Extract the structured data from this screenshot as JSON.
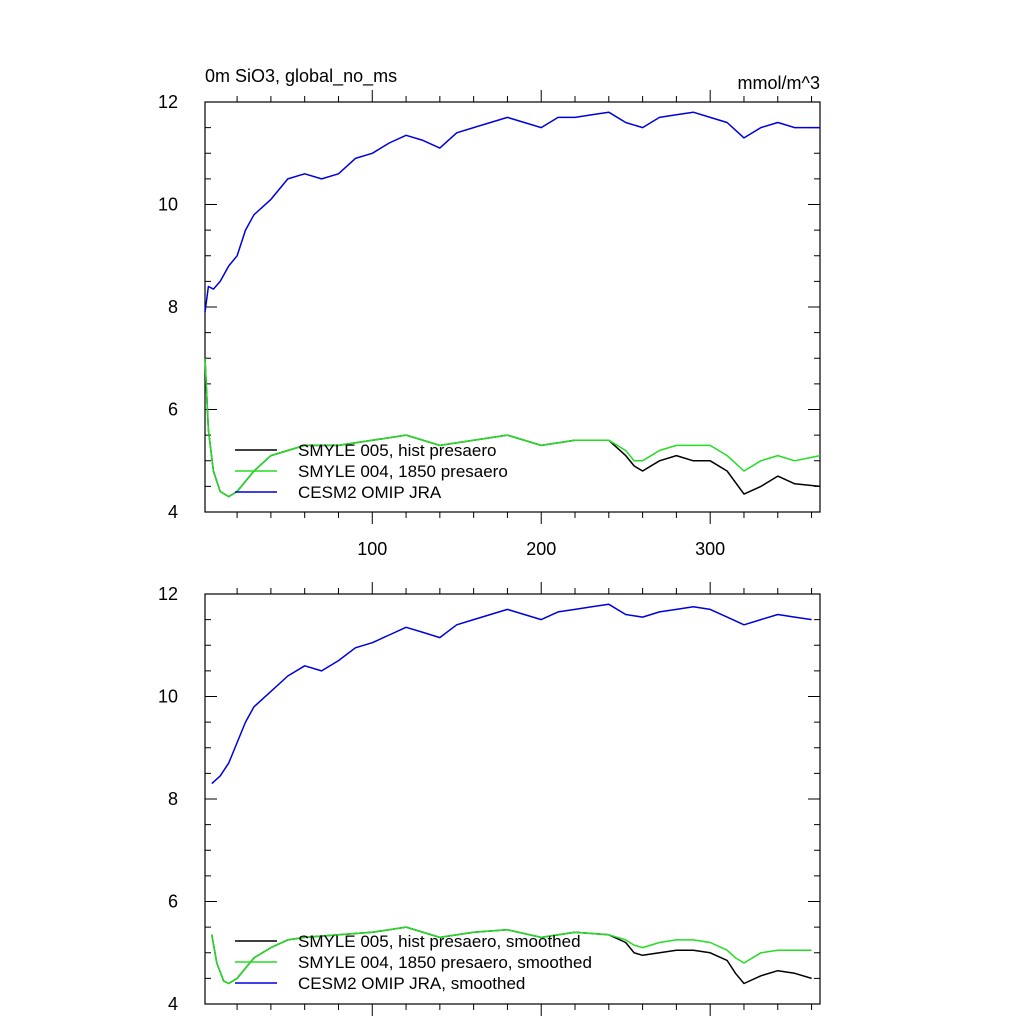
{
  "chart_data": [
    {
      "type": "line",
      "title": "0m SiO3, global_no_ms",
      "units": "mmol/m^3",
      "xlabel": "",
      "ylabel": "",
      "xlim": [
        1,
        365
      ],
      "ylim": [
        4,
        12
      ],
      "xticks": [
        100,
        200,
        300
      ],
      "xtick_labels": [
        "100",
        "200",
        "300"
      ],
      "yticks": [
        4,
        6,
        8,
        10,
        12
      ],
      "ytick_labels": [
        "4",
        "6",
        "8",
        "10",
        "12"
      ],
      "grid": false,
      "legend_position": "bottom-left",
      "series": [
        {
          "name": "SMYLE 005, hist presaero",
          "color": "#000000",
          "x": [
            1,
            3,
            6,
            10,
            15,
            20,
            30,
            40,
            50,
            60,
            80,
            100,
            120,
            140,
            160,
            180,
            200,
            220,
            240,
            250,
            255,
            260,
            270,
            280,
            290,
            300,
            310,
            320,
            330,
            340,
            350,
            365
          ],
          "y": [
            7.0,
            5.6,
            4.8,
            4.4,
            4.3,
            4.4,
            4.8,
            5.1,
            5.2,
            5.3,
            5.3,
            5.4,
            5.5,
            5.3,
            5.4,
            5.5,
            5.3,
            5.4,
            5.4,
            5.1,
            4.9,
            4.8,
            5.0,
            5.1,
            5.0,
            5.0,
            4.8,
            4.35,
            4.5,
            4.7,
            4.55,
            4.5
          ]
        },
        {
          "name": "SMYLE 004, 1850 presaero",
          "color": "#22dd22",
          "x": [
            1,
            3,
            6,
            10,
            15,
            20,
            30,
            40,
            50,
            60,
            80,
            100,
            120,
            140,
            160,
            180,
            200,
            220,
            240,
            250,
            255,
            260,
            270,
            280,
            290,
            300,
            310,
            320,
            330,
            340,
            350,
            365
          ],
          "y": [
            7.0,
            5.6,
            4.8,
            4.4,
            4.3,
            4.4,
            4.8,
            5.1,
            5.2,
            5.3,
            5.3,
            5.4,
            5.5,
            5.3,
            5.4,
            5.5,
            5.3,
            5.4,
            5.4,
            5.2,
            5.0,
            5.0,
            5.2,
            5.3,
            5.3,
            5.3,
            5.1,
            4.8,
            5.0,
            5.1,
            5.0,
            5.1
          ]
        },
        {
          "name": "CESM2 OMIP JRA",
          "color": "#0000dd",
          "x": [
            1,
            3,
            6,
            10,
            15,
            20,
            25,
            30,
            40,
            50,
            60,
            70,
            80,
            90,
            100,
            110,
            120,
            130,
            140,
            150,
            160,
            170,
            180,
            190,
            200,
            210,
            220,
            230,
            240,
            250,
            260,
            270,
            280,
            290,
            300,
            310,
            320,
            330,
            340,
            350,
            365
          ],
          "y": [
            7.9,
            8.4,
            8.35,
            8.5,
            8.8,
            9.0,
            9.5,
            9.8,
            10.1,
            10.5,
            10.6,
            10.5,
            10.6,
            10.9,
            11.0,
            11.2,
            11.35,
            11.25,
            11.1,
            11.4,
            11.5,
            11.6,
            11.7,
            11.6,
            11.5,
            11.7,
            11.7,
            11.75,
            11.8,
            11.6,
            11.5,
            11.7,
            11.75,
            11.8,
            11.7,
            11.6,
            11.3,
            11.5,
            11.6,
            11.5,
            11.5
          ]
        }
      ]
    },
    {
      "type": "line",
      "title": "",
      "units": "",
      "xlabel": "",
      "ylabel": "",
      "xlim": [
        1,
        365
      ],
      "ylim": [
        4,
        12
      ],
      "xticks": [
        100,
        200,
        300
      ],
      "xtick_labels": [],
      "yticks": [
        4,
        6,
        8,
        10,
        12
      ],
      "ytick_labels": [
        "4",
        "6",
        "8",
        "10",
        "12"
      ],
      "grid": false,
      "legend_position": "bottom-left",
      "series": [
        {
          "name": "SMYLE 005, hist presaero, smoothed",
          "color": "#000000",
          "x": [
            5,
            8,
            12,
            15,
            20,
            30,
            40,
            50,
            60,
            80,
            100,
            120,
            140,
            160,
            180,
            200,
            220,
            240,
            250,
            255,
            260,
            270,
            280,
            290,
            300,
            310,
            315,
            320,
            330,
            340,
            350,
            360
          ],
          "y": [
            5.35,
            4.8,
            4.45,
            4.4,
            4.5,
            4.9,
            5.1,
            5.25,
            5.3,
            5.35,
            5.4,
            5.5,
            5.3,
            5.4,
            5.45,
            5.3,
            5.4,
            5.35,
            5.2,
            5.0,
            4.95,
            5.0,
            5.05,
            5.05,
            5.0,
            4.85,
            4.6,
            4.4,
            4.55,
            4.65,
            4.6,
            4.5
          ]
        },
        {
          "name": "SMYLE 004, 1850 presaero, smoothed",
          "color": "#22dd22",
          "x": [
            5,
            8,
            12,
            15,
            20,
            30,
            40,
            50,
            60,
            80,
            100,
            120,
            140,
            160,
            180,
            200,
            220,
            240,
            250,
            255,
            260,
            270,
            280,
            290,
            300,
            310,
            315,
            320,
            330,
            340,
            350,
            360
          ],
          "y": [
            5.35,
            4.8,
            4.45,
            4.4,
            4.5,
            4.9,
            5.1,
            5.25,
            5.3,
            5.35,
            5.4,
            5.5,
            5.3,
            5.4,
            5.45,
            5.3,
            5.4,
            5.35,
            5.25,
            5.15,
            5.1,
            5.2,
            5.25,
            5.25,
            5.2,
            5.05,
            4.9,
            4.8,
            5.0,
            5.05,
            5.05,
            5.05
          ]
        },
        {
          "name": "CESM2 OMIP JRA, smoothed",
          "color": "#0000dd",
          "x": [
            5,
            10,
            15,
            20,
            25,
            30,
            40,
            50,
            60,
            70,
            80,
            90,
            100,
            110,
            120,
            130,
            140,
            150,
            160,
            170,
            180,
            190,
            200,
            210,
            220,
            230,
            240,
            250,
            260,
            270,
            280,
            290,
            300,
            310,
            320,
            330,
            340,
            350,
            360
          ],
          "y": [
            8.3,
            8.45,
            8.7,
            9.1,
            9.5,
            9.8,
            10.1,
            10.4,
            10.6,
            10.5,
            10.7,
            10.95,
            11.05,
            11.2,
            11.35,
            11.25,
            11.15,
            11.4,
            11.5,
            11.6,
            11.7,
            11.6,
            11.5,
            11.65,
            11.7,
            11.75,
            11.8,
            11.6,
            11.55,
            11.65,
            11.7,
            11.75,
            11.7,
            11.55,
            11.4,
            11.5,
            11.6,
            11.55,
            11.5
          ]
        }
      ]
    }
  ]
}
